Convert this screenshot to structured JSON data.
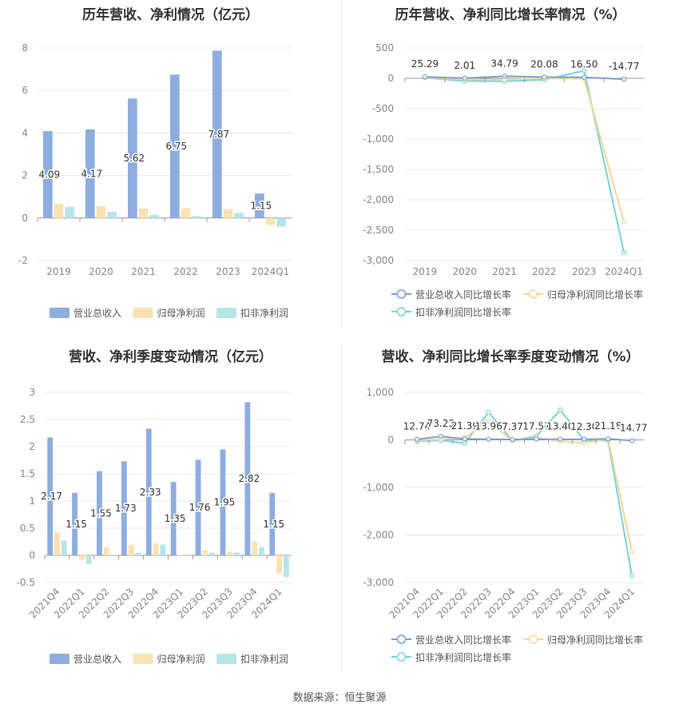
{
  "footer": {
    "source": "数据来源：恒生聚源"
  },
  "colors": {
    "revenue": "#8eaddf",
    "net_profit": "#fbe2b2",
    "deducted": "#b6e5e8",
    "rev_growth": "#7f9fd3",
    "np_growth": "#f6d795",
    "ded_growth": "#7ad3d9"
  },
  "chart_data": [
    {
      "type": "bar",
      "title": "历年营收、净利情况（亿元）",
      "categories": [
        "2019",
        "2020",
        "2021",
        "2022",
        "2023",
        "2024Q1"
      ],
      "series": [
        {
          "name": "营业总收入",
          "values": [
            4.09,
            4.17,
            5.62,
            6.75,
            7.87,
            1.15
          ]
        },
        {
          "name": "归母净利润",
          "values": [
            0.66,
            0.56,
            0.45,
            0.45,
            0.42,
            -0.33
          ]
        },
        {
          "name": "扣非净利润",
          "values": [
            0.52,
            0.29,
            0.14,
            0.09,
            0.24,
            -0.4
          ]
        }
      ],
      "data_labels": [
        "4.09",
        "4.17",
        "5.62",
        "6.75",
        "7.87",
        "1.15"
      ],
      "ylim": [
        -2,
        8
      ],
      "yticks": [
        "-2",
        "0",
        "2",
        "4",
        "6",
        "8"
      ],
      "legend": "bottom",
      "grid": true
    },
    {
      "type": "line",
      "title": "历年营收、净利同比增长率情况（%）",
      "categories": [
        "2019",
        "2020",
        "2021",
        "2022",
        "2023",
        "2024Q1"
      ],
      "series": [
        {
          "name": "营业总收入同比增长率",
          "values": [
            25.29,
            2.01,
            34.79,
            20.08,
            16.5,
            -14.77
          ]
        },
        {
          "name": "归母净利润同比增长率",
          "values": [
            20,
            -20,
            -19,
            0,
            -6,
            -2360
          ]
        },
        {
          "name": "扣非净利润同比增长率",
          "values": [
            10,
            -45,
            -50,
            -25,
            125,
            -2870
          ]
        }
      ],
      "data_labels": [
        "25.29",
        "2.01",
        "34.79",
        "20.08",
        "16.50",
        "-14.77"
      ],
      "ylim": [
        -3000,
        500
      ],
      "yticks": [
        "-3,000",
        "-2,500",
        "-2,000",
        "-1,500",
        "-1,000",
        "-500",
        "0",
        "500"
      ],
      "legend": "bottom",
      "grid": true
    },
    {
      "type": "bar",
      "title": "营收、净利季度变动情况（亿元）",
      "categories": [
        "2021Q4",
        "2022Q1",
        "2022Q2",
        "2022Q3",
        "2022Q4",
        "2023Q1",
        "2023Q2",
        "2023Q3",
        "2023Q4",
        "2024Q1"
      ],
      "series": [
        {
          "name": "营业总收入",
          "values": [
            2.17,
            1.15,
            1.55,
            1.73,
            2.33,
            1.35,
            1.76,
            1.95,
            2.82,
            1.15
          ]
        },
        {
          "name": "归母净利润",
          "values": [
            0.42,
            -0.08,
            0.15,
            0.19,
            0.22,
            0.01,
            0.09,
            0.07,
            0.26,
            -0.33
          ]
        },
        {
          "name": "扣非净利润",
          "values": [
            0.27,
            -0.16,
            0.01,
            0.05,
            0.2,
            0.0,
            0.05,
            0.05,
            0.15,
            -0.4
          ]
        }
      ],
      "data_labels": [
        "2.17",
        "1.15",
        "1.55",
        "1.73",
        "2.33",
        "1.35",
        "1.76",
        "1.95",
        "2.82",
        "1.15"
      ],
      "ylim": [
        -0.5,
        3
      ],
      "yticks": [
        "-0.5",
        "0",
        "0.5",
        "1",
        "1.5",
        "2",
        "2.5",
        "3"
      ],
      "legend": "bottom",
      "grid": true
    },
    {
      "type": "line",
      "title": "营收、净利同比增长率季度变动情况（%）",
      "categories": [
        "2021Q4",
        "2022Q1",
        "2022Q2",
        "2022Q3",
        "2022Q4",
        "2023Q1",
        "2023Q2",
        "2023Q3",
        "2023Q4",
        "2024Q1"
      ],
      "series": [
        {
          "name": "营业总收入同比增长率",
          "values": [
            12.74,
            73.23,
            21.39,
            13.96,
            7.37,
            17.57,
            13.4,
            12.3,
            21.18,
            -14.77
          ]
        },
        {
          "name": "归母净利润同比增长率",
          "values": [
            -10,
            10,
            40,
            400,
            -20,
            40,
            -30,
            -60,
            20,
            -2350
          ]
        },
        {
          "name": "扣非净利润同比增长率",
          "values": [
            -30,
            -10,
            -70,
            580,
            -20,
            80,
            630,
            -10,
            -10,
            -2860
          ]
        }
      ],
      "data_labels": [
        "12.74",
        "73.23",
        "21.39",
        "13.96",
        "7.37",
        "17.57",
        "13.40",
        "12.30",
        "21.18",
        "-14.77"
      ],
      "ylim": [
        -3000,
        1000
      ],
      "yticks": [
        "-3,000",
        "-2,000",
        "-1,000",
        "0",
        "1,000"
      ],
      "legend": "bottom",
      "grid": true
    }
  ]
}
